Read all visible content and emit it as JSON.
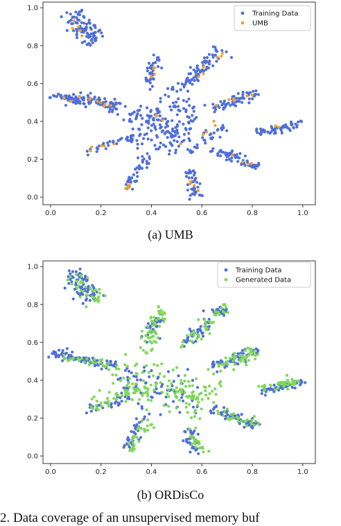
{
  "chart_data": [
    {
      "type": "scatter",
      "xlim": [
        -0.03,
        1.05
      ],
      "ylim": [
        -0.04,
        1.03
      ],
      "xticks": [
        0.0,
        0.2,
        0.4,
        0.6,
        0.8,
        1.0
      ],
      "yticks": [
        0.0,
        0.2,
        0.4,
        0.6,
        0.8,
        1.0
      ],
      "xtick_labels": [
        "0.0",
        "0.2",
        "0.4",
        "0.6",
        "0.8",
        "1.0"
      ],
      "ytick_labels": [
        "0.0",
        "0.2",
        "0.4",
        "0.6",
        "0.8",
        "1.0"
      ],
      "grid": false,
      "legend_position": "top-right",
      "series": [
        {
          "name": "Training Data",
          "color": "#4f6fd8",
          "clusters": [
            {
              "from": [
                0.08,
                0.97
              ],
              "to": [
                0.17,
                0.82
              ],
              "width": 0.035,
              "n": 85
            },
            {
              "from": [
                0.0,
                0.54
              ],
              "to": [
                0.26,
                0.48
              ],
              "width": 0.02,
              "n": 95
            },
            {
              "from": [
                0.15,
                0.52
              ],
              "to": [
                0.3,
                0.47
              ],
              "width": 0.02,
              "n": 18
            },
            {
              "from": [
                0.14,
                0.24
              ],
              "to": [
                0.33,
                0.32
              ],
              "width": 0.018,
              "n": 30
            },
            {
              "from": [
                0.3,
                0.04
              ],
              "to": [
                0.38,
                0.22
              ],
              "width": 0.02,
              "n": 40
            },
            {
              "from": [
                0.38,
                0.58
              ],
              "to": [
                0.43,
                0.75
              ],
              "width": 0.02,
              "n": 38
            },
            {
              "from": [
                0.38,
                0.45
              ],
              "to": [
                0.46,
                0.37
              ],
              "width": 0.025,
              "n": 22
            },
            {
              "from": [
                0.55,
                0.14
              ],
              "to": [
                0.58,
                0.0
              ],
              "width": 0.02,
              "n": 38
            },
            {
              "from": [
                0.52,
                0.58
              ],
              "to": [
                0.68,
                0.78
              ],
              "width": 0.025,
              "n": 70
            },
            {
              "from": [
                0.64,
                0.47
              ],
              "to": [
                0.83,
                0.56
              ],
              "width": 0.02,
              "n": 60
            },
            {
              "from": [
                0.64,
                0.25
              ],
              "to": [
                0.82,
                0.16
              ],
              "width": 0.02,
              "n": 60
            },
            {
              "from": [
                0.82,
                0.34
              ],
              "to": [
                1.0,
                0.39
              ],
              "width": 0.018,
              "n": 55
            },
            {
              "from": [
                0.55,
                0.24
              ],
              "to": [
                0.69,
                0.38
              ],
              "width": 0.02,
              "n": 28
            },
            {
              "from": [
                0.3,
                0.42
              ],
              "to": [
                0.56,
                0.3
              ],
              "width": 0.09,
              "n": 130
            },
            {
              "from": [
                0.45,
                0.57
              ],
              "to": [
                0.58,
                0.42
              ],
              "width": 0.05,
              "n": 35
            }
          ]
        },
        {
          "name": "UMB",
          "color": "#f0a030",
          "clusters": [
            {
              "from": [
                0.09,
                0.94
              ],
              "to": [
                0.13,
                0.84
              ],
              "width": 0.02,
              "n": 5
            },
            {
              "from": [
                0.02,
                0.53
              ],
              "to": [
                0.24,
                0.49
              ],
              "width": 0.015,
              "n": 10
            },
            {
              "from": [
                0.15,
                0.25
              ],
              "to": [
                0.31,
                0.29
              ],
              "width": 0.012,
              "n": 5
            },
            {
              "from": [
                0.3,
                0.05
              ],
              "to": [
                0.33,
                0.08
              ],
              "width": 0.01,
              "n": 4
            },
            {
              "from": [
                0.39,
                0.62
              ],
              "to": [
                0.42,
                0.69
              ],
              "width": 0.012,
              "n": 4
            },
            {
              "from": [
                0.42,
                0.45
              ],
              "to": [
                0.44,
                0.4
              ],
              "width": 0.012,
              "n": 3
            },
            {
              "from": [
                0.55,
                0.09
              ],
              "to": [
                0.58,
                0.03
              ],
              "width": 0.01,
              "n": 4
            },
            {
              "from": [
                0.56,
                0.6
              ],
              "to": [
                0.68,
                0.77
              ],
              "width": 0.015,
              "n": 6
            },
            {
              "from": [
                0.64,
                0.49
              ],
              "to": [
                0.82,
                0.55
              ],
              "width": 0.012,
              "n": 6
            },
            {
              "from": [
                0.72,
                0.22
              ],
              "to": [
                0.8,
                0.17
              ],
              "width": 0.01,
              "n": 4
            },
            {
              "from": [
                0.86,
                0.36
              ],
              "to": [
                0.95,
                0.38
              ],
              "width": 0.01,
              "n": 2
            },
            {
              "from": [
                0.53,
                0.27
              ],
              "to": [
                0.66,
                0.38
              ],
              "width": 0.02,
              "n": 5
            }
          ]
        }
      ]
    },
    {
      "type": "scatter",
      "xlim": [
        -0.03,
        1.05
      ],
      "ylim": [
        -0.04,
        1.03
      ],
      "xticks": [
        0.0,
        0.2,
        0.4,
        0.6,
        0.8,
        1.0
      ],
      "yticks": [
        0.0,
        0.2,
        0.4,
        0.6,
        0.8,
        1.0
      ],
      "xtick_labels": [
        "0.0",
        "0.2",
        "0.4",
        "0.6",
        "0.8",
        "1.0"
      ],
      "ytick_labels": [
        "0.0",
        "0.2",
        "0.4",
        "0.6",
        "0.8",
        "1.0"
      ],
      "grid": false,
      "legend_position": "top-right",
      "series": [
        {
          "name": "Training Data",
          "color": "#4f6fd8",
          "clusters": [
            {
              "from": [
                0.08,
                0.97
              ],
              "to": [
                0.17,
                0.82
              ],
              "width": 0.035,
              "n": 75
            },
            {
              "from": [
                0.0,
                0.54
              ],
              "to": [
                0.26,
                0.48
              ],
              "width": 0.02,
              "n": 90
            },
            {
              "from": [
                0.14,
                0.24
              ],
              "to": [
                0.33,
                0.32
              ],
              "width": 0.018,
              "n": 28
            },
            {
              "from": [
                0.3,
                0.04
              ],
              "to": [
                0.38,
                0.22
              ],
              "width": 0.02,
              "n": 35
            },
            {
              "from": [
                0.38,
                0.58
              ],
              "to": [
                0.43,
                0.75
              ],
              "width": 0.02,
              "n": 30
            },
            {
              "from": [
                0.55,
                0.14
              ],
              "to": [
                0.58,
                0.0
              ],
              "width": 0.02,
              "n": 32
            },
            {
              "from": [
                0.52,
                0.58
              ],
              "to": [
                0.68,
                0.78
              ],
              "width": 0.025,
              "n": 60
            },
            {
              "from": [
                0.64,
                0.47
              ],
              "to": [
                0.83,
                0.56
              ],
              "width": 0.02,
              "n": 55
            },
            {
              "from": [
                0.64,
                0.25
              ],
              "to": [
                0.82,
                0.16
              ],
              "width": 0.02,
              "n": 55
            },
            {
              "from": [
                0.82,
                0.34
              ],
              "to": [
                1.0,
                0.39
              ],
              "width": 0.018,
              "n": 50
            },
            {
              "from": [
                0.3,
                0.42
              ],
              "to": [
                0.56,
                0.3
              ],
              "width": 0.09,
              "n": 70
            }
          ]
        },
        {
          "name": "Generated Data",
          "color": "#7ed957",
          "clusters": [
            {
              "from": [
                0.09,
                0.95
              ],
              "to": [
                0.19,
                0.82
              ],
              "width": 0.03,
              "n": 35
            },
            {
              "from": [
                0.05,
                0.52
              ],
              "to": [
                0.28,
                0.46
              ],
              "width": 0.02,
              "n": 30
            },
            {
              "from": [
                0.15,
                0.26
              ],
              "to": [
                0.34,
                0.36
              ],
              "width": 0.025,
              "n": 35
            },
            {
              "from": [
                0.31,
                0.03
              ],
              "to": [
                0.39,
                0.2
              ],
              "width": 0.022,
              "n": 28
            },
            {
              "from": [
                0.37,
                0.55
              ],
              "to": [
                0.43,
                0.78
              ],
              "width": 0.03,
              "n": 55
            },
            {
              "from": [
                0.54,
                0.13
              ],
              "to": [
                0.61,
                0.02
              ],
              "width": 0.02,
              "n": 22
            },
            {
              "from": [
                0.53,
                0.58
              ],
              "to": [
                0.7,
                0.8
              ],
              "width": 0.025,
              "n": 40
            },
            {
              "from": [
                0.62,
                0.46
              ],
              "to": [
                0.82,
                0.55
              ],
              "width": 0.025,
              "n": 50
            },
            {
              "from": [
                0.66,
                0.23
              ],
              "to": [
                0.82,
                0.17
              ],
              "width": 0.02,
              "n": 28
            },
            {
              "from": [
                0.83,
                0.35
              ],
              "to": [
                0.99,
                0.4
              ],
              "width": 0.02,
              "n": 40
            },
            {
              "from": [
                0.26,
                0.42
              ],
              "to": [
                0.62,
                0.3
              ],
              "width": 0.09,
              "n": 120
            },
            {
              "from": [
                0.55,
                0.3
              ],
              "to": [
                0.68,
                0.38
              ],
              "width": 0.02,
              "n": 18
            }
          ]
        }
      ]
    }
  ],
  "captions": {
    "a": "(a)  UMB",
    "b": "(b)  ORDisCo",
    "figure": "2. Data coverage of an unsupervised memory buf"
  }
}
